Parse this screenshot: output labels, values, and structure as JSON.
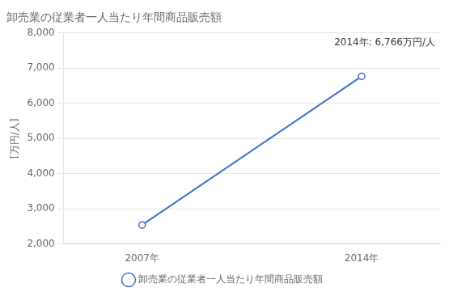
{
  "chart_data": {
    "type": "line",
    "title": "卸売業の従業者一人当たり年間商品販売額",
    "ylabel": "[万円/人]",
    "annotation": "2014年: 6,766万円/人",
    "x": [
      2007,
      2014
    ],
    "series": [
      {
        "name": "卸売業の従業者一人当たり年間商品販売額",
        "color": "#4472C4",
        "marker": "circle",
        "values": [
          2540,
          6766
        ]
      }
    ],
    "xlim": [
      2004.5,
      2016.5
    ],
    "xticks": [
      {
        "value": 2007,
        "label": "2007年"
      },
      {
        "value": 2014,
        "label": "2014年"
      }
    ],
    "ylim": [
      2000,
      8000
    ],
    "yticks": [
      {
        "value": 2000,
        "label": "2,000"
      },
      {
        "value": 3000,
        "label": "3,000"
      },
      {
        "value": 4000,
        "label": "4,000"
      },
      {
        "value": 5000,
        "label": "5,000"
      },
      {
        "value": 6000,
        "label": "6,000"
      },
      {
        "value": 7000,
        "label": "7,000"
      },
      {
        "value": 8000,
        "label": "8,000"
      }
    ],
    "grid": true,
    "legend": "bottom"
  }
}
